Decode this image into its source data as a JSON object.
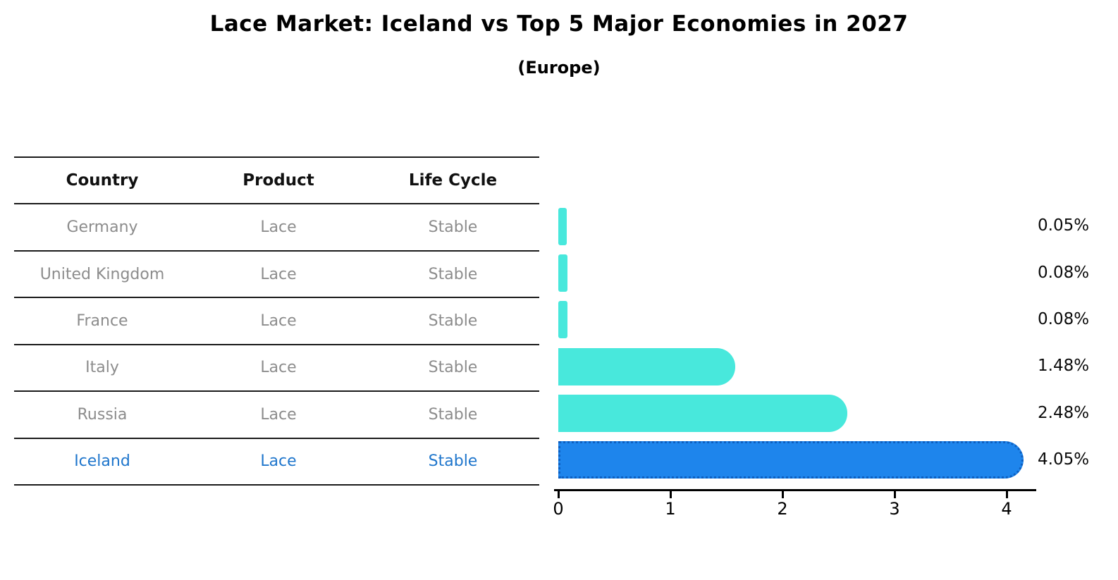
{
  "title": "Lace Market: Iceland vs Top 5 Major Economies in 2027",
  "subtitle": "(Europe)",
  "table": {
    "headers": [
      "Country",
      "Product",
      "Life Cycle"
    ],
    "rows": [
      {
        "country": "Germany",
        "product": "Lace",
        "life_cycle": "Stable"
      },
      {
        "country": "United Kingdom",
        "product": "Lace",
        "life_cycle": "Stable"
      },
      {
        "country": "France",
        "product": "Lace",
        "life_cycle": "Stable"
      },
      {
        "country": "Italy",
        "product": "Lace",
        "life_cycle": "Stable"
      },
      {
        "country": "Russia",
        "product": "Lace",
        "life_cycle": "Stable"
      },
      {
        "country": "Iceland",
        "product": "Lace",
        "life_cycle": "Stable"
      }
    ],
    "highlight_row": "Iceland"
  },
  "chart_data": {
    "type": "bar",
    "orientation": "horizontal",
    "title": "Lace Market: Iceland vs Top 5 Major Economies in 2027",
    "subtitle": "(Europe)",
    "categories": [
      "Germany",
      "United Kingdom",
      "France",
      "Italy",
      "Russia",
      "Iceland"
    ],
    "values": [
      0.05,
      0.08,
      0.08,
      1.48,
      2.48,
      4.05
    ],
    "value_labels": [
      "0.05%",
      "0.08%",
      "0.08%",
      "1.48%",
      "2.48%",
      "4.05%"
    ],
    "xlabel": "",
    "ylabel": "",
    "xticks": [
      "0",
      "1",
      "2",
      "3",
      "4"
    ],
    "xlim": [
      0,
      4.3
    ],
    "grid": false,
    "legend": false,
    "highlight_category": "Iceland",
    "colors": {
      "bar": "#48e8dc",
      "highlight_bar": "#1e85ec",
      "highlight_border": "#0d5fc0",
      "highlight_text": "#1f76cc",
      "row_text": "#8c8c8c",
      "header_text": "#111111",
      "axis": "#000000"
    }
  }
}
